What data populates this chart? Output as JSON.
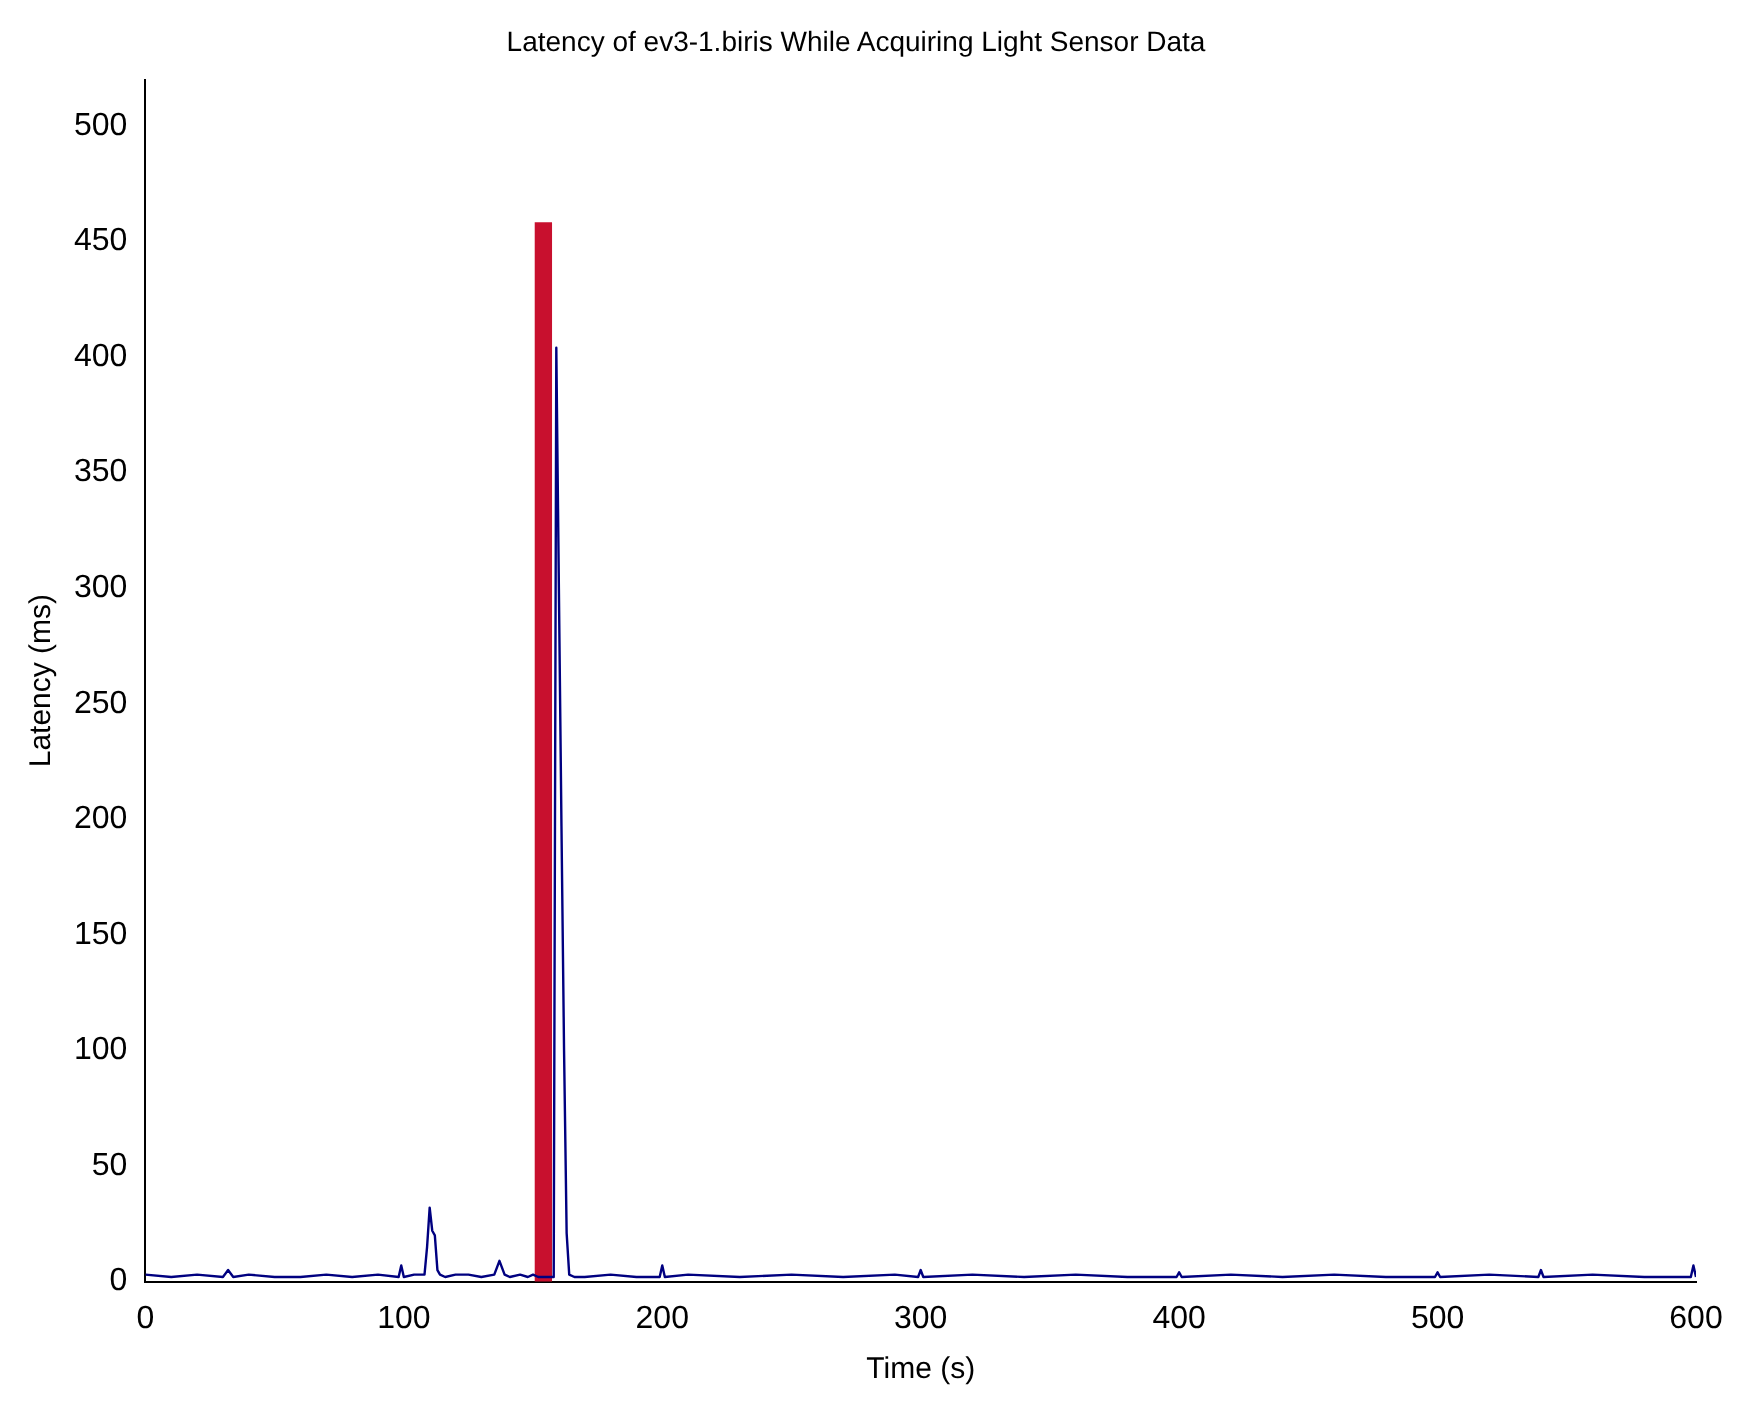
{
  "chart_data": {
    "type": "line",
    "title": "Latency of ev3-1.biris While Acquiring Light Sensor Data",
    "xlabel": "Time (s)",
    "ylabel": "Latency (ms)",
    "xlim": [
      0,
      600
    ],
    "xticks": [
      0,
      100,
      200,
      300,
      400,
      500,
      600
    ],
    "ylim": [
      0,
      520
    ],
    "yticks": [
      0,
      50,
      100,
      150,
      200,
      250,
      300,
      350,
      400,
      450,
      500
    ],
    "grid": false,
    "legend": false,
    "series": [
      {
        "color": "#000080",
        "x": [
          0,
          10,
          20,
          30,
          32,
          34,
          40,
          50,
          60,
          70,
          80,
          90,
          98,
          99,
          100,
          104,
          108,
          109,
          110,
          111,
          112,
          113,
          114,
          116,
          120,
          125,
          130,
          135,
          137,
          139,
          141,
          145,
          148,
          150,
          152,
          156,
          158,
          159,
          160,
          161,
          162,
          163,
          164,
          166,
          170,
          180,
          190,
          199,
          200,
          201,
          210,
          230,
          250,
          270,
          290,
          299,
          300,
          301,
          320,
          340,
          360,
          380,
          399,
          400,
          401,
          420,
          440,
          460,
          480,
          499,
          500,
          501,
          520,
          539,
          540,
          541,
          560,
          580,
          598,
          599,
          600
        ],
        "values": [
          3,
          2,
          3,
          2,
          5,
          2,
          3,
          2,
          2,
          3,
          2,
          3,
          2,
          7,
          2,
          3,
          3,
          15,
          32,
          22,
          20,
          5,
          3,
          2,
          3,
          3,
          2,
          3,
          9,
          3,
          2,
          3,
          2,
          3,
          2,
          2,
          2,
          404,
          300,
          197,
          100,
          21,
          3,
          2,
          2,
          3,
          2,
          2,
          7,
          2,
          3,
          2,
          3,
          2,
          3,
          2,
          5,
          2,
          3,
          2,
          3,
          2,
          2,
          4,
          2,
          3,
          2,
          3,
          2,
          2,
          4,
          2,
          3,
          2,
          5,
          2,
          3,
          2,
          2,
          7,
          2
        ]
      },
      {
        "type": "bar",
        "color": "#c8102e",
        "x": [
          154
        ],
        "values": [
          458
        ]
      }
    ]
  }
}
